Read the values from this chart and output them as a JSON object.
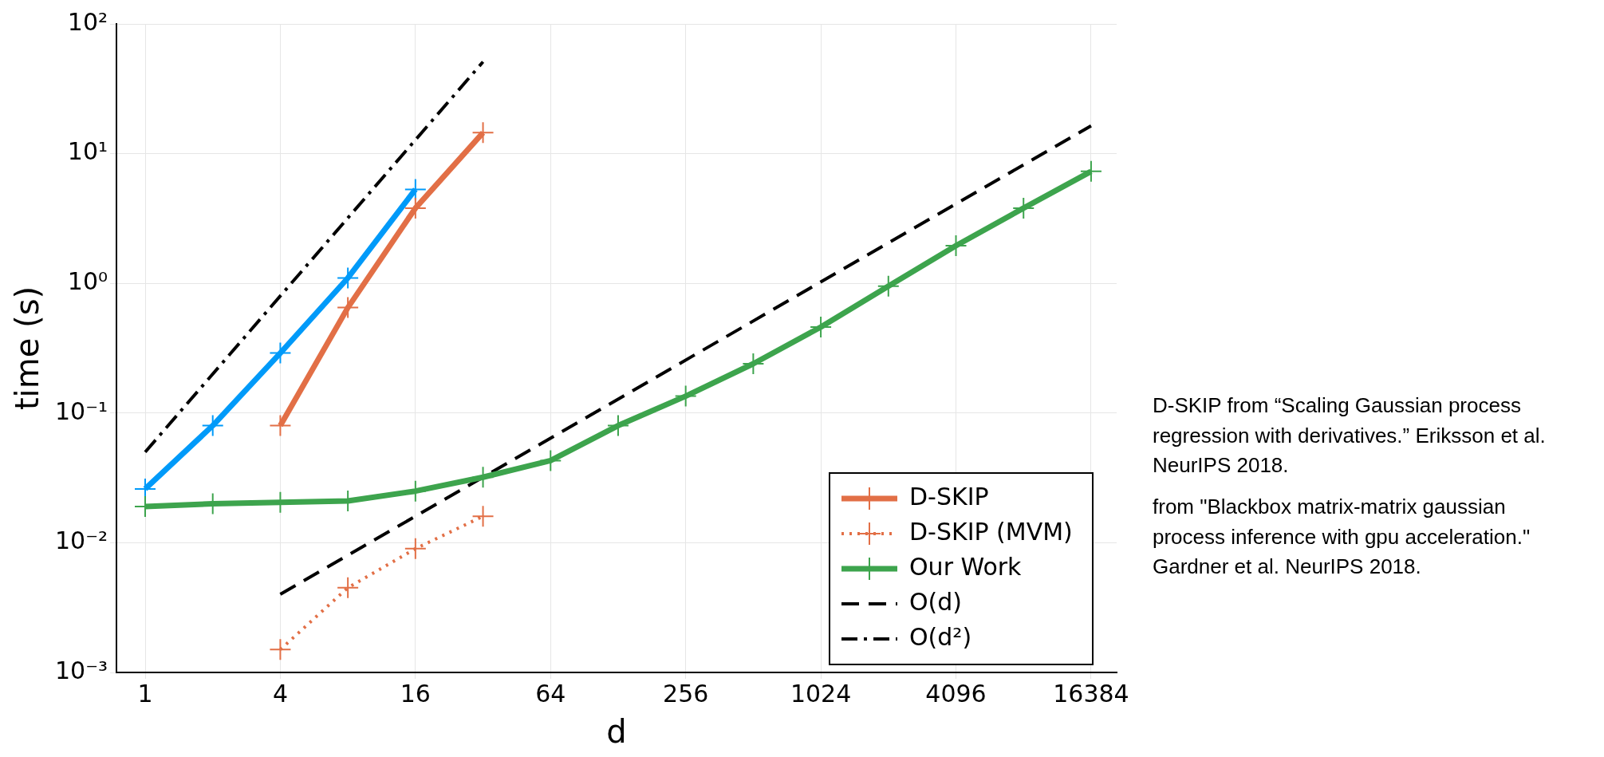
{
  "chart_data": {
    "type": "line",
    "xlabel": "d",
    "ylabel": "time (s)",
    "log": "xy",
    "grid": true,
    "legend": "bottom right",
    "marker": "cross",
    "xlim": [
      0.745,
      21300
    ],
    "xticks": [
      1,
      4,
      16,
      64,
      256,
      1024,
      4096,
      16384
    ],
    "ylim": [
      0.001,
      100
    ],
    "yticks": [
      {
        "value": 0.001,
        "label": "10⁻³"
      },
      {
        "value": 0.01,
        "label": "10⁻²"
      },
      {
        "value": 0.1,
        "label": "10⁻¹"
      },
      {
        "value": 1,
        "label": "10⁰"
      },
      {
        "value": 10,
        "label": "10¹"
      },
      {
        "value": 100,
        "label": "10²"
      }
    ],
    "series": [
      {
        "color": "#009af9",
        "x": [
          1,
          2,
          4,
          8,
          16
        ],
        "values": [
          0.026,
          0.08,
          0.29,
          1.1,
          5.3
        ]
      },
      {
        "name": "D-SKIP",
        "color": "#e26f46",
        "x": [
          4,
          8,
          16,
          32
        ],
        "values": [
          0.08,
          0.65,
          3.8,
          14.5
        ]
      },
      {
        "name": "D-SKIP (MVM)",
        "color": "#e26f46",
        "line_style": "dotted",
        "x": [
          4,
          8,
          16,
          32
        ],
        "values": [
          0.0015,
          0.0045,
          0.009,
          0.016
        ]
      },
      {
        "name": "Our Work",
        "color": "#3da44d",
        "x": [
          1,
          2,
          4,
          8,
          16,
          32,
          64,
          128,
          256,
          512,
          1024,
          2048,
          4096,
          8192,
          16384
        ],
        "values": [
          0.019,
          0.02,
          0.0205,
          0.021,
          0.025,
          0.032,
          0.043,
          0.08,
          0.135,
          0.24,
          0.46,
          0.95,
          1.95,
          3.8,
          7.3
        ]
      },
      {
        "name": "O(d)",
        "color": "#000000",
        "line_style": "dashed",
        "marker": "none",
        "x": [
          4,
          16384
        ],
        "values": [
          0.004,
          16.4
        ]
      },
      {
        "name": "O(d²)",
        "color": "#000000",
        "line_style": "dashdot",
        "marker": "none",
        "x": [
          1,
          32
        ],
        "values": [
          0.05,
          51
        ]
      }
    ],
    "annotations": [
      "D-SKIP from “Scaling Gaussian process regression with derivatives.” Eriksson et al. NeurIPS 2018.",
      "from \"Blackbox matrix-matrix gaussian process inference with gpu acceleration.\" Gardner et al. NeurIPS 2018."
    ]
  }
}
